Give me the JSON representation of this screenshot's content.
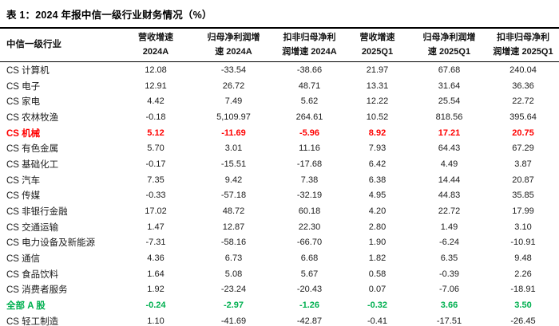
{
  "title": "表 1：2024 年报中信一级行业财务情况（%）",
  "colors": {
    "highlight_red": "#ff0000",
    "highlight_green": "#00b050",
    "text": "#1c1c1c",
    "rule": "#000000"
  },
  "table": {
    "headers": [
      "中信一级行业",
      "营收增速\n2024A",
      "归母净利润增\n速 2024A",
      "扣非归母净利\n润增速 2024A",
      "营收增速\n2025Q1",
      "归母净利润增\n速 2025Q1",
      "扣非归母净利\n润增速 2025Q1"
    ],
    "rows": [
      {
        "label": "CS 计算机",
        "values": [
          "12.08",
          "-33.54",
          "-38.66",
          "21.97",
          "67.68",
          "240.04"
        ],
        "style": "default"
      },
      {
        "label": "CS 电子",
        "values": [
          "12.91",
          "26.72",
          "48.71",
          "13.31",
          "31.64",
          "36.36"
        ],
        "style": "default"
      },
      {
        "label": "CS 家电",
        "values": [
          "4.42",
          "7.49",
          "5.62",
          "12.22",
          "25.54",
          "22.72"
        ],
        "style": "default"
      },
      {
        "label": "CS 农林牧渔",
        "values": [
          "-0.18",
          "5,109.97",
          "264.61",
          "10.52",
          "818.56",
          "395.64"
        ],
        "style": "default"
      },
      {
        "label": "CS 机械",
        "values": [
          "5.12",
          "-11.69",
          "-5.96",
          "8.92",
          "17.21",
          "20.75"
        ],
        "style": "red"
      },
      {
        "label": "CS 有色金属",
        "values": [
          "5.70",
          "3.01",
          "11.16",
          "7.93",
          "64.43",
          "67.29"
        ],
        "style": "default"
      },
      {
        "label": "CS 基础化工",
        "values": [
          "-0.17",
          "-15.51",
          "-17.68",
          "6.42",
          "4.49",
          "3.87"
        ],
        "style": "default"
      },
      {
        "label": "CS 汽车",
        "values": [
          "7.35",
          "9.42",
          "7.38",
          "6.38",
          "14.44",
          "20.87"
        ],
        "style": "default"
      },
      {
        "label": "CS 传媒",
        "values": [
          "-0.33",
          "-57.18",
          "-32.19",
          "4.95",
          "44.83",
          "35.85"
        ],
        "style": "default"
      },
      {
        "label": "CS 非银行金融",
        "values": [
          "17.02",
          "48.72",
          "60.18",
          "4.20",
          "22.72",
          "17.99"
        ],
        "style": "default"
      },
      {
        "label": "CS 交通运输",
        "values": [
          "1.47",
          "12.87",
          "22.30",
          "2.80",
          "1.49",
          "3.10"
        ],
        "style": "default"
      },
      {
        "label": "CS 电力设备及新能源",
        "values": [
          "-7.31",
          "-58.16",
          "-66.70",
          "1.90",
          "-6.24",
          "-10.91"
        ],
        "style": "default"
      },
      {
        "label": "CS 通信",
        "values": [
          "4.36",
          "6.73",
          "6.68",
          "1.82",
          "6.35",
          "9.48"
        ],
        "style": "default"
      },
      {
        "label": "CS 食品饮料",
        "values": [
          "1.64",
          "5.08",
          "5.67",
          "0.58",
          "-0.39",
          "2.26"
        ],
        "style": "default"
      },
      {
        "label": "CS 消费者服务",
        "values": [
          "1.92",
          "-23.24",
          "-20.43",
          "0.07",
          "-7.06",
          "-18.91"
        ],
        "style": "default"
      },
      {
        "label": "全部 A 股",
        "values": [
          "-0.24",
          "-2.97",
          "-1.26",
          "-0.32",
          "3.66",
          "3.50"
        ],
        "style": "green"
      },
      {
        "label": "CS 轻工制造",
        "values": [
          "1.10",
          "-41.69",
          "-42.87",
          "-0.41",
          "-17.51",
          "-26.45"
        ],
        "style": "default"
      }
    ]
  }
}
